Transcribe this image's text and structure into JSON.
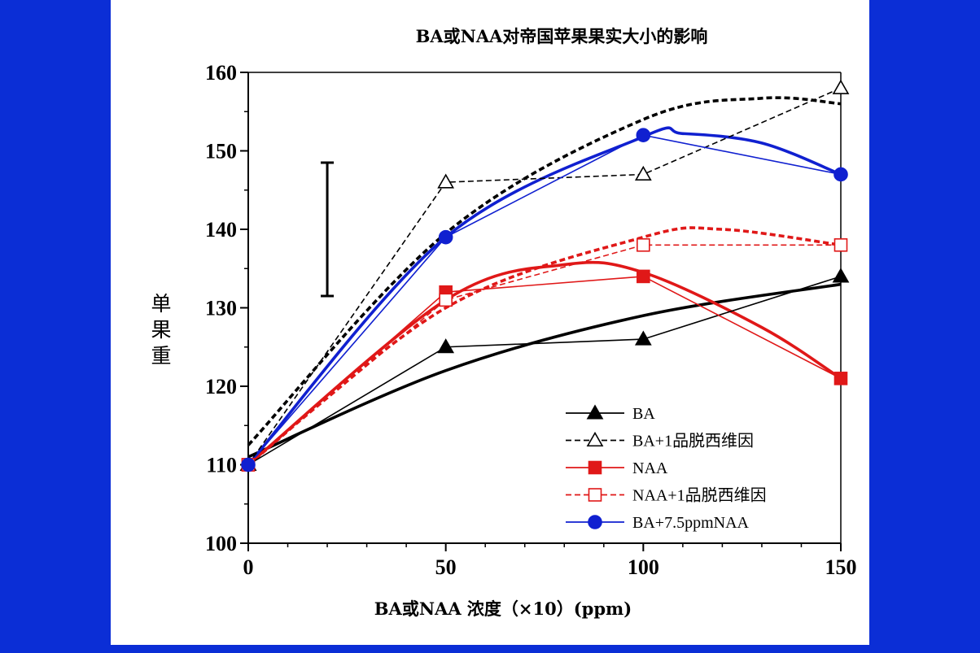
{
  "chart_data": {
    "type": "line",
    "title": "BA或NAA对帝国苹果果实大小的影响",
    "xlabel": "BA或NAA 浓度（×10）(ppm)",
    "ylabel": "单果重",
    "xlim": [
      0,
      150
    ],
    "ylim": [
      100,
      160
    ],
    "x_ticks": [
      "0",
      "50",
      "100",
      "150"
    ],
    "y_ticks": [
      "100",
      "110",
      "120",
      "130",
      "140",
      "150",
      "160"
    ],
    "grid": false,
    "legend_position": "lower-right",
    "x": [
      0,
      50,
      100,
      150
    ],
    "series": [
      {
        "name": "BA",
        "values": [
          110,
          125,
          126,
          134
        ],
        "color": "#000000",
        "dash": "solid",
        "marker": "triangle-filled",
        "trend": [
          [
            0,
            111
          ],
          [
            50,
            122
          ],
          [
            100,
            129
          ],
          [
            150,
            133
          ]
        ]
      },
      {
        "name": "BA+1品脱西维因",
        "values": [
          110,
          146,
          147,
          158
        ],
        "color": "#000000",
        "dash": "dashed",
        "marker": "triangle-open",
        "trend": [
          [
            0,
            112.5
          ],
          [
            50,
            139.5
          ],
          [
            100,
            154
          ],
          [
            130,
            156.7
          ],
          [
            150,
            156
          ]
        ]
      },
      {
        "name": "NAA",
        "values": [
          110,
          132,
          134,
          121
        ],
        "color": "#e01818",
        "dash": "solid",
        "marker": "square-filled",
        "trend": [
          [
            0,
            110
          ],
          [
            50,
            131
          ],
          [
            80,
            135.5
          ],
          [
            100,
            134.5
          ],
          [
            130,
            127.5
          ],
          [
            150,
            121
          ]
        ]
      },
      {
        "name": "NAA+1品脱西维因",
        "values": [
          110,
          131,
          138,
          138
        ],
        "color": "#e01818",
        "dash": "dashed",
        "marker": "square-open",
        "trend": [
          [
            0,
            110
          ],
          [
            50,
            130
          ],
          [
            100,
            139
          ],
          [
            120,
            140
          ],
          [
            150,
            138
          ]
        ]
      },
      {
        "name": "BA+7.5ppmNAA",
        "values": [
          110,
          139,
          152,
          147
        ],
        "color": "#1020d0",
        "dash": "solid",
        "marker": "circle-filled",
        "trend": [
          [
            0,
            110
          ],
          [
            50,
            139
          ],
          [
            100,
            151.8
          ],
          [
            110,
            152.2
          ],
          [
            130,
            151
          ],
          [
            150,
            147
          ]
        ]
      }
    ],
    "error_bar": {
      "x": 20,
      "low": 131.5,
      "high": 148.5
    }
  }
}
